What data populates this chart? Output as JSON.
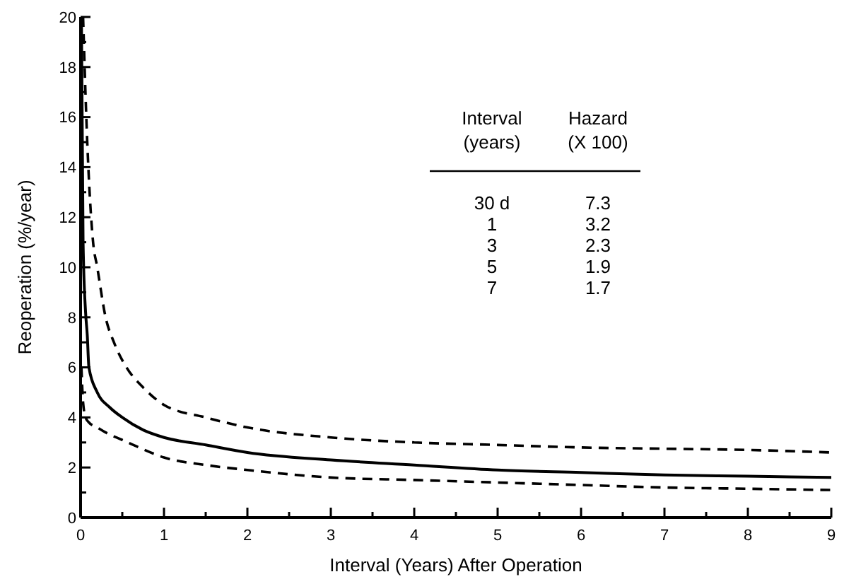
{
  "chart_data": {
    "type": "line",
    "xlabel": "Interval (Years) After Operation",
    "ylabel": "Reoperation (%/year)",
    "xlim": [
      0,
      9
    ],
    "ylim": [
      0,
      20
    ],
    "xticks": [
      0,
      {
        "value": 0.5,
        "label": null
      },
      1,
      {
        "value": 1.5,
        "label": null
      },
      2,
      {
        "value": 2.5,
        "label": null
      },
      3,
      {
        "value": 3.5,
        "label": null
      },
      4,
      {
        "value": 4.5,
        "label": null
      },
      5,
      {
        "value": 5.5,
        "label": null
      },
      6,
      {
        "value": 6.5,
        "label": null
      },
      7,
      {
        "value": 7.5,
        "label": null
      },
      8,
      {
        "value": 8.5,
        "label": null
      },
      9
    ],
    "yticks": [
      0,
      {
        "value": 1,
        "label": null
      },
      2,
      {
        "value": 3,
        "label": null
      },
      4,
      {
        "value": 5,
        "label": null
      },
      6,
      {
        "value": 7,
        "label": null
      },
      8,
      {
        "value": 9,
        "label": null
      },
      10,
      {
        "value": 11,
        "label": null
      },
      12,
      {
        "value": 13,
        "label": null
      },
      14,
      {
        "value": 15,
        "label": null
      },
      16,
      {
        "value": 17,
        "label": null
      },
      18,
      {
        "value": 19,
        "label": null
      },
      20
    ],
    "grid": false,
    "series": [
      {
        "color": "#000000",
        "line_style": "solid",
        "x": [
          0.01,
          0.03,
          0.06,
          0.08,
          0.1,
          0.2,
          0.35,
          0.5,
          0.75,
          1,
          1.5,
          2,
          3,
          4,
          5,
          6,
          7,
          8,
          9
        ],
        "values": [
          20,
          11,
          8.2,
          7.3,
          6,
          5,
          4.4,
          4,
          3.5,
          3.2,
          2.9,
          2.6,
          2.3,
          2.1,
          1.9,
          1.8,
          1.7,
          1.65,
          1.6
        ]
      },
      {
        "color": "#000000",
        "line_style": "dashed",
        "x": [
          0.03,
          0.08,
          0.15,
          0.2,
          0.3,
          0.4,
          0.55,
          0.75,
          1,
          1.5,
          2,
          3,
          4,
          5,
          6,
          7,
          8,
          9
        ],
        "values": [
          20,
          15,
          11,
          10,
          8,
          7,
          6,
          5.2,
          4.5,
          4,
          3.6,
          3.2,
          3,
          2.9,
          2.8,
          2.75,
          2.7,
          2.6
        ]
      },
      {
        "color": "#000000",
        "line_style": "dashed",
        "x": [
          0.01,
          0.03,
          0.06,
          0.1,
          0.2,
          0.3,
          0.5,
          0.7,
          1,
          1.5,
          2,
          3,
          4,
          5,
          6,
          7,
          8,
          9
        ],
        "values": [
          6,
          4.6,
          4,
          3.8,
          3.6,
          3.4,
          3.1,
          2.8,
          2.4,
          2.1,
          1.9,
          1.6,
          1.5,
          1.4,
          1.3,
          1.2,
          1.15,
          1.1
        ]
      }
    ],
    "annotations": [
      "Interval\n(years)",
      "Hazard\n(X 100)",
      "30 d",
      "7.3",
      "1",
      "3.2",
      "3",
      "2.3",
      "5",
      "1.9",
      "7",
      "1.7"
    ]
  }
}
